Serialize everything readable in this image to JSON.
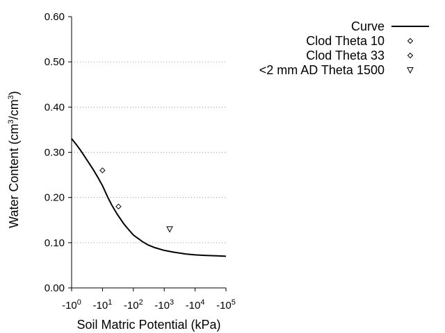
{
  "chart_data": {
    "type": "line",
    "xlabel": "Soil Matric Potential (kPa)",
    "ylabel": "Water Content (cm³/cm³)",
    "ylabel_parts": {
      "prefix": "Water Content (cm",
      "sup1": "3",
      "mid": "/cm",
      "sup2": "3",
      "suffix": ")"
    },
    "x_scale": "log",
    "xlim": [
      1,
      100000
    ],
    "ylim": [
      0,
      0.6
    ],
    "x_ticks": [
      {
        "value": 1,
        "base": "-10",
        "exp": "0"
      },
      {
        "value": 10,
        "base": "-10",
        "exp": "1"
      },
      {
        "value": 100,
        "base": "-10",
        "exp": "2"
      },
      {
        "value": 1000,
        "base": "-10",
        "exp": "3"
      },
      {
        "value": 10000,
        "base": "-10",
        "exp": "4"
      },
      {
        "value": 100000,
        "base": "-10",
        "exp": "5"
      }
    ],
    "y_ticks": [
      {
        "value": 0,
        "label": "0.00"
      },
      {
        "value": 0.1,
        "label": "0.10"
      },
      {
        "value": 0.2,
        "label": "0.20"
      },
      {
        "value": 0.3,
        "label": "0.30"
      },
      {
        "value": 0.4,
        "label": "0.40"
      },
      {
        "value": 0.5,
        "label": "0.50"
      },
      {
        "value": 0.6,
        "label": "0.60"
      }
    ],
    "grid": "horizontal dotted",
    "legend_position": "top-right",
    "series": [
      {
        "name": "Curve",
        "kind": "line",
        "x": [
          1,
          1.5,
          2,
          3,
          5,
          7,
          10,
          15,
          20,
          30,
          50,
          70,
          100,
          200,
          300,
          500,
          1000,
          2000,
          5000,
          10000,
          20000,
          50000,
          100000
        ],
        "y": [
          0.33,
          0.315,
          0.303,
          0.285,
          0.262,
          0.245,
          0.226,
          0.2,
          0.183,
          0.163,
          0.141,
          0.129,
          0.117,
          0.102,
          0.095,
          0.089,
          0.083,
          0.079,
          0.075,
          0.073,
          0.072,
          0.071,
          0.07
        ]
      },
      {
        "name": "Clod Theta 10",
        "kind": "marker",
        "marker": "diamond",
        "x": [
          10
        ],
        "y": [
          0.26
        ]
      },
      {
        "name": "Clod Theta 33",
        "kind": "marker",
        "marker": "diamond",
        "x": [
          33
        ],
        "y": [
          0.18
        ]
      },
      {
        "name": "<2 mm AD Theta 1500",
        "kind": "marker",
        "marker": "triangle-down",
        "x": [
          1500
        ],
        "y": [
          0.13
        ]
      }
    ]
  }
}
